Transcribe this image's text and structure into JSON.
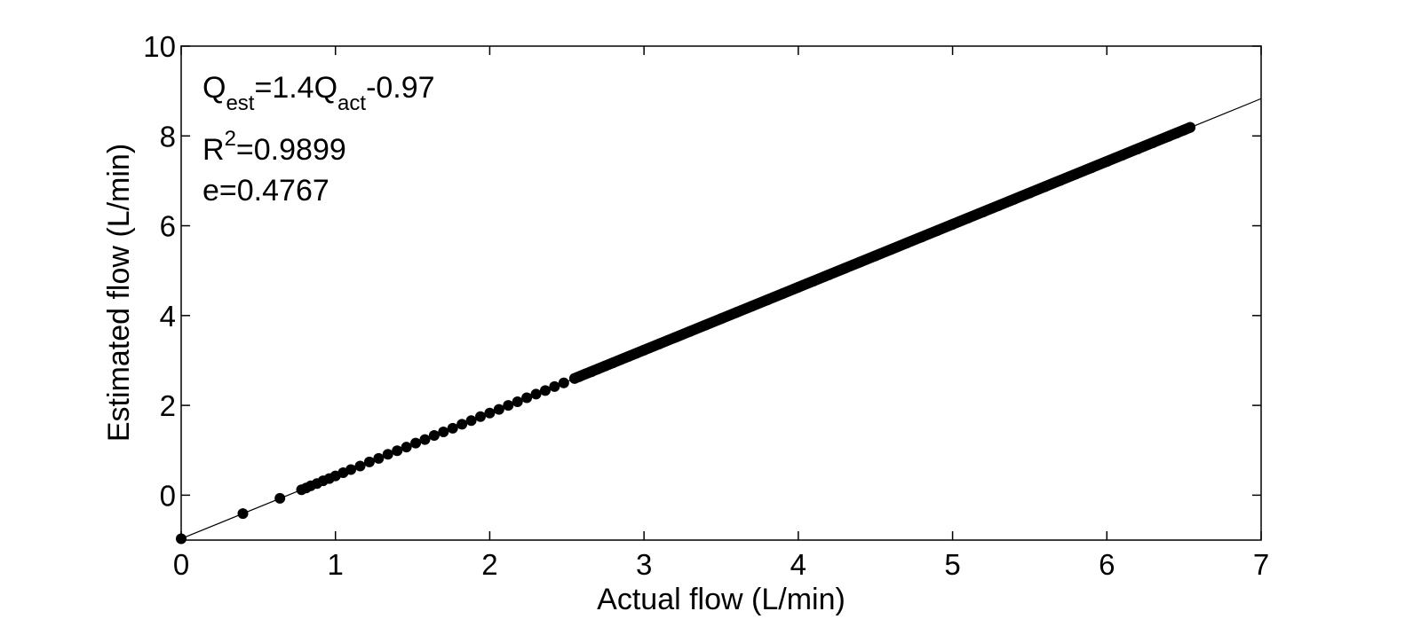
{
  "chart_data": {
    "type": "scatter",
    "xlabel": "Actual flow (L/min)",
    "ylabel": "Estimated flow (L/min)",
    "xlim": [
      0,
      7
    ],
    "ylim": [
      -1,
      10
    ],
    "x_ticks": [
      0,
      1,
      2,
      3,
      4,
      5,
      6,
      7
    ],
    "y_ticks": [
      0,
      2,
      4,
      6,
      8,
      10
    ],
    "x_tick_labels": [
      "0",
      "1",
      "2",
      "3",
      "4",
      "5",
      "6",
      "7"
    ],
    "y_tick_labels": [
      "0",
      "2",
      "4",
      "6",
      "8",
      "10"
    ],
    "grid": false,
    "marker_color": "#000000",
    "line_color": "#000000",
    "fit_line": {
      "slope": 1.4,
      "intercept": -0.97,
      "x_range": [
        0,
        7
      ]
    },
    "annotations": {
      "equation": {
        "q1": "Q",
        "sub1": "est",
        "mid": "=1.4Q",
        "sub2": "act",
        "tail": "-0.97"
      },
      "r2": {
        "base": "R",
        "sup": "2",
        "tail": "=0.9899"
      },
      "error": "e=0.4767"
    },
    "series": [
      {
        "x": [
          0.0,
          0.4,
          0.64,
          0.78,
          0.81,
          0.84,
          0.88,
          0.92,
          0.96,
          1.0,
          1.05,
          1.1,
          1.16,
          1.22,
          1.28,
          1.34,
          1.4,
          1.46,
          1.52,
          1.58,
          1.64,
          1.7,
          1.76,
          1.82,
          1.88,
          1.94,
          2.0,
          2.06,
          2.12,
          2.18,
          2.24,
          2.3,
          2.36,
          2.42,
          2.48,
          2.55,
          2.58,
          2.62,
          2.66,
          2.7,
          2.75,
          2.8,
          2.85,
          2.9,
          2.95,
          3.0,
          3.1,
          3.2,
          3.3,
          3.4,
          3.5,
          3.6,
          3.7,
          3.8,
          3.9,
          4.0,
          4.1,
          4.2,
          4.3,
          4.4,
          4.5,
          4.6,
          4.7,
          4.8,
          4.9,
          5.0,
          5.1,
          5.2,
          5.3,
          5.4,
          5.5,
          5.6,
          5.7,
          5.8,
          5.9,
          6.0,
          6.1,
          6.2,
          6.3,
          6.4,
          6.45,
          6.5,
          6.54
        ],
        "y": [
          -0.97,
          -0.41,
          -0.07,
          0.12,
          0.16,
          0.21,
          0.26,
          0.32,
          0.37,
          0.43,
          0.5,
          0.57,
          0.65,
          0.74,
          0.82,
          0.91,
          0.99,
          1.07,
          1.16,
          1.24,
          1.33,
          1.41,
          1.49,
          1.58,
          1.66,
          1.75,
          1.83,
          1.91,
          2.0,
          2.08,
          2.17,
          2.25,
          2.33,
          2.42,
          2.5,
          2.6,
          2.64,
          2.7,
          2.75,
          2.81,
          2.88,
          2.95,
          3.02,
          3.09,
          3.16,
          3.23,
          3.37,
          3.51,
          3.65,
          3.79,
          3.93,
          4.07,
          4.21,
          4.35,
          4.49,
          4.63,
          4.77,
          4.91,
          5.05,
          5.19,
          5.33,
          5.47,
          5.61,
          5.75,
          5.89,
          6.03,
          6.17,
          6.31,
          6.45,
          6.59,
          6.73,
          6.87,
          7.01,
          7.15,
          7.29,
          7.43,
          7.57,
          7.71,
          7.85,
          7.99,
          8.06,
          8.13,
          8.19
        ]
      }
    ]
  }
}
